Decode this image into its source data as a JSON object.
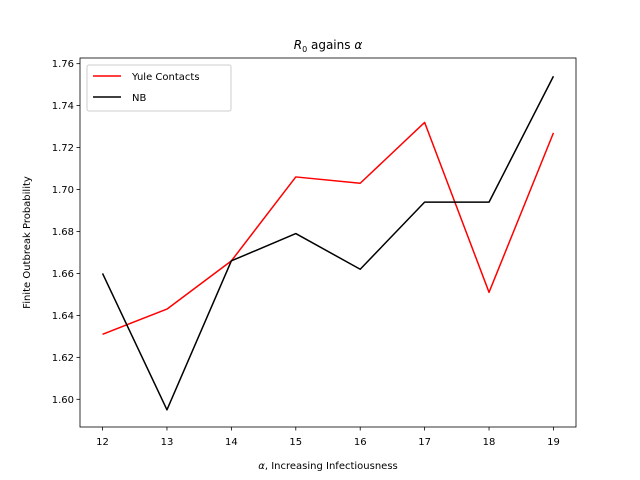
{
  "chart_data": {
    "type": "line",
    "title_main": "R",
    "title_sub": "0",
    "title_rest": " agains ",
    "title_greek": "α",
    "xlabel_greek": "α",
    "xlabel_rest": ", Increasing Infectiousness",
    "ylabel": "Finite Outbreak Probability",
    "x": [
      12,
      13,
      14,
      15,
      16,
      17,
      18,
      19
    ],
    "xticks": [
      "12",
      "13",
      "14",
      "15",
      "16",
      "17",
      "18",
      "19"
    ],
    "yticks": [
      1.6,
      1.62,
      1.64,
      1.66,
      1.68,
      1.7,
      1.72,
      1.74,
      1.76
    ],
    "ytick_labels": [
      "1.60",
      "1.62",
      "1.64",
      "1.66",
      "1.68",
      "1.70",
      "1.72",
      "1.74",
      "1.76"
    ],
    "xlim": [
      11.65,
      19.35
    ],
    "ylim": [
      1.5868,
      1.7627
    ],
    "grid": false,
    "legend_position": "top-left",
    "series": [
      {
        "name": "Yule Contacts",
        "color": "#ff0000",
        "values": [
          1.631,
          1.643,
          1.666,
          1.706,
          1.703,
          1.732,
          1.651,
          1.727
        ]
      },
      {
        "name": "NB",
        "color": "#000000",
        "values": [
          1.66,
          1.595,
          1.666,
          1.679,
          1.662,
          1.694,
          1.694,
          1.754
        ]
      }
    ]
  }
}
